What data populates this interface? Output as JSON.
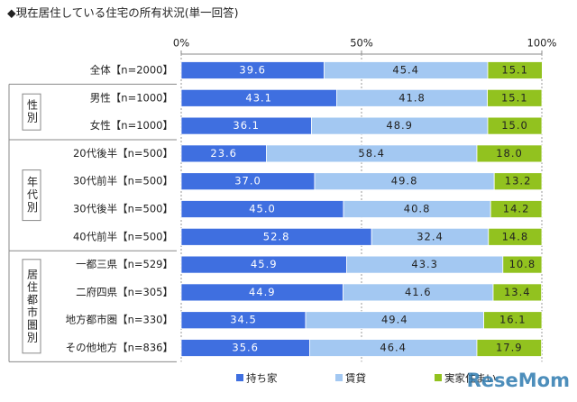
{
  "chart_data": {
    "type": "stacked_barh",
    "title": "◆現在居住している住宅の所有状況(単一回答)",
    "categories": [
      "全体【n=2000】",
      "男性【n=1000】",
      "女性【n=1000】",
      "20代後半【n=500】",
      "30代前半【n=500】",
      "30代後半【n=500】",
      "40代前半【n=500】",
      "一都三県【n=529】",
      "二府四県【n=305】",
      "地方都市圏【n=330】",
      "その他地方【n=836】"
    ],
    "groups": [
      "性別",
      "年代別",
      "居住都市圏別"
    ],
    "series": [
      {
        "name": "持ち家",
        "color": "#3f6fe0",
        "values": [
          39.6,
          43.1,
          36.1,
          23.6,
          37.0,
          45.0,
          52.8,
          45.9,
          44.9,
          34.5,
          35.6
        ],
        "value_labels": [
          "39.6",
          "43.1",
          "36.1",
          "23.6",
          "37.0",
          "45.0",
          "52.8",
          "45.9",
          "44.9",
          "34.5",
          "35.6"
        ]
      },
      {
        "name": "賃貸",
        "color": "#a3c8f2",
        "values": [
          45.4,
          41.8,
          48.9,
          58.4,
          49.8,
          40.8,
          32.4,
          43.3,
          41.6,
          49.4,
          46.4
        ]
      },
      {
        "name": "実家住まい",
        "color": "#92c21f",
        "values": [
          15.1,
          15.1,
          15.0,
          18.0,
          13.2,
          14.2,
          14.8,
          10.8,
          13.4,
          16.1,
          17.9
        ],
        "value_labels": [
          "15.1",
          "15.1",
          "15.0",
          "18.0",
          "13.2",
          "14.2",
          "14.8",
          "10.8",
          "13.4",
          "16.1",
          "17.9"
        ]
      }
    ],
    "xlim": [
      0,
      100
    ],
    "xticks": [
      {
        "value": 0,
        "label": "0%"
      },
      {
        "value": 50,
        "label": "50%"
      },
      {
        "value": 100,
        "label": "100%"
      }
    ],
    "grid": true,
    "watermark": "ReseMom"
  }
}
